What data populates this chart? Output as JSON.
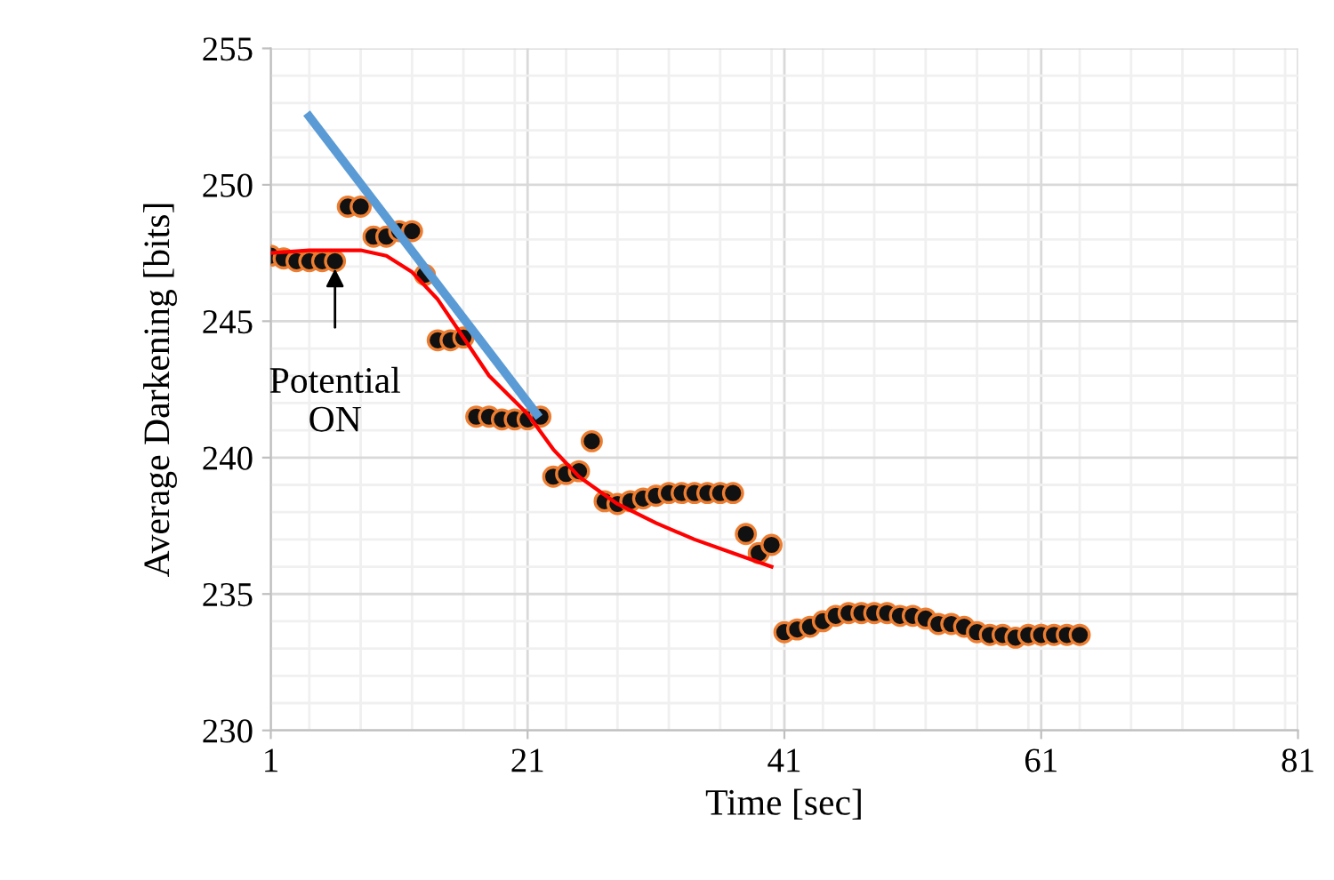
{
  "chart_data": {
    "type": "scatter",
    "xlabel": "Time [sec]",
    "ylabel": "Average Darkening [bits]",
    "xlim": [
      1,
      81
    ],
    "xticks": [
      1,
      21,
      41,
      61,
      81
    ],
    "ylim": [
      230,
      255
    ],
    "yticks": [
      230,
      235,
      240,
      245,
      250,
      255
    ],
    "grid": true,
    "legend": false,
    "series": [
      {
        "color": "#111111",
        "marker": "circle",
        "x": [
          1,
          2,
          3,
          4,
          5,
          6,
          7,
          8,
          9,
          10,
          11,
          12,
          13,
          14,
          15,
          16,
          17,
          18,
          19,
          20,
          21,
          22,
          23,
          24,
          25,
          26,
          27,
          28,
          29,
          30,
          31,
          32,
          33,
          34,
          35,
          36,
          37,
          38,
          39,
          40,
          41,
          42,
          43,
          44,
          45,
          46,
          47,
          48,
          49,
          50,
          51,
          52,
          53,
          54,
          55,
          56,
          57,
          58,
          59,
          60,
          61,
          62,
          63,
          64
        ],
        "values": [
          247.4,
          247.3,
          247.2,
          247.2,
          247.2,
          247.2,
          249.2,
          249.2,
          248.1,
          248.1,
          248.3,
          248.3,
          246.7,
          244.3,
          244.3,
          244.4,
          241.5,
          241.5,
          241.4,
          241.4,
          241.4,
          241.5,
          239.3,
          239.4,
          239.5,
          240.6,
          238.4,
          238.3,
          238.4,
          238.5,
          238.6,
          238.7,
          238.7,
          238.7,
          238.7,
          238.7,
          238.7,
          237.2,
          236.5,
          236.8,
          233.6,
          233.7,
          233.8,
          234.0,
          234.2,
          234.3,
          234.3,
          234.3,
          234.3,
          234.2,
          234.2,
          234.1,
          233.9,
          233.9,
          233.8,
          233.6,
          233.5,
          233.5,
          233.4,
          233.5,
          233.5,
          233.5,
          233.5,
          233.5
        ]
      },
      {
        "type": "line",
        "color": "#ff0000",
        "marker": "none",
        "x": [
          1,
          4,
          8,
          10,
          12,
          14,
          16,
          18,
          21,
          23,
          25,
          28,
          31,
          34,
          37,
          40
        ],
        "values": [
          247.5,
          247.6,
          247.6,
          247.4,
          246.8,
          245.8,
          244.4,
          243.0,
          241.6,
          240.3,
          239.3,
          238.3,
          237.6,
          237.0,
          236.5,
          236.0
        ]
      },
      {
        "type": "line",
        "color": "#5b9bd5",
        "marker": "none",
        "x": [
          4,
          21.7
        ],
        "values": [
          252.5,
          241.6
        ]
      }
    ],
    "annotations": [
      {
        "text": "Potential\nON",
        "x": 6,
        "y": 247.2
      }
    ]
  }
}
